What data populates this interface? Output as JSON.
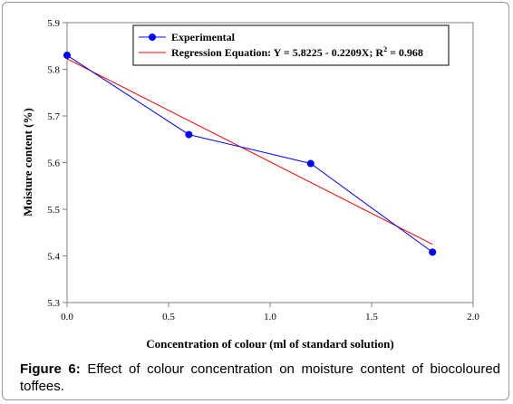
{
  "caption": {
    "label": "Figure 6:",
    "text": "Effect of colour concentration on moisture content of biocoloured toffees."
  },
  "chart_data": {
    "type": "line",
    "xlabel": "Concentration of colour (ml of standard solution)",
    "ylabel": "Moisture content (%)",
    "xlim": [
      0.0,
      2.0
    ],
    "ylim": [
      5.3,
      5.9
    ],
    "x_ticks": [
      "0.0",
      "0.5",
      "1.0",
      "1.5",
      "2.0"
    ],
    "y_ticks": [
      "5.3",
      "5.4",
      "5.5",
      "5.6",
      "5.7",
      "5.8",
      "5.9"
    ],
    "legend_position": "top-right",
    "series": [
      {
        "name": "Experimental",
        "color": "#0000ff",
        "marker": "circle",
        "x": [
          0.0,
          0.6,
          1.2,
          1.8
        ],
        "y": [
          5.83,
          5.66,
          5.598,
          5.408
        ]
      },
      {
        "name": "Regression Equation: Y = 5.8225 - 0.2209X; R",
        "name_sup": "2",
        "name_tail": " = 0.968",
        "color": "#ff0000",
        "marker": "none",
        "x": [
          0.0,
          1.8
        ],
        "y": [
          5.8225,
          5.42488
        ]
      }
    ]
  }
}
